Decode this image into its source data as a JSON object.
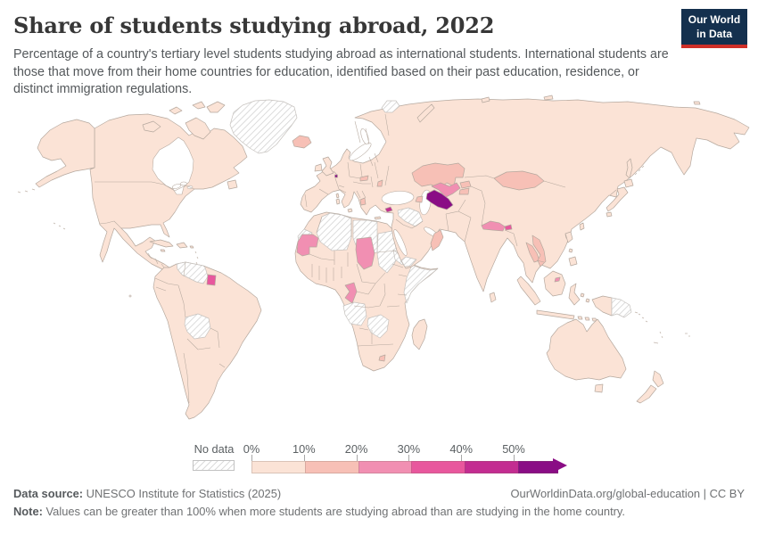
{
  "header": {
    "title": "Share of students studying abroad, 2022",
    "subtitle": "Percentage of a country's tertiary level students studying abroad as international students. International students are those that move from their home countries for education, identified based on their past education, residence, or distinct immigration regulations."
  },
  "logo": {
    "line1": "Our World",
    "line2": "in Data",
    "bg_color": "#14304e",
    "accent_color": "#cf2f28"
  },
  "legend": {
    "no_data_label": "No data",
    "ticks": [
      "0%",
      "10%",
      "20%",
      "30%",
      "40%",
      "50%"
    ]
  },
  "footer": {
    "source_label": "Data source:",
    "source_text": " UNESCO Institute for Statistics (2025)",
    "link_text": "OurWorldinData.org/global-education | CC BY",
    "note_label": "Note:",
    "note_text": " Values can be greater than 100% when more students are studying abroad than are studying in the home country."
  },
  "chart_data": {
    "type": "choropleth_map",
    "title": "Share of students studying abroad, 2022",
    "year": 2022,
    "unit": "%",
    "projection": "world-robinson",
    "legend": {
      "no_data": {
        "label": "No data",
        "pattern": "diagonal-hatch"
      },
      "bins": [
        {
          "min": 0,
          "max": 10,
          "label": "0%",
          "color": "#fbe3d6"
        },
        {
          "min": 10,
          "max": 20,
          "label": "10%",
          "color": "#f7c0b6"
        },
        {
          "min": 20,
          "max": 30,
          "label": "20%",
          "color": "#f18fb2"
        },
        {
          "min": 30,
          "max": 40,
          "label": "30%",
          "color": "#e8579d"
        },
        {
          "min": 40,
          "max": 50,
          "label": "40%",
          "color": "#c32d91"
        },
        {
          "min": 50,
          "max": null,
          "label": "50%",
          "color": "#8a0d85",
          "open_ended": true
        }
      ]
    },
    "countries_by_bin": {
      "50%+": [
        "Turkmenistan",
        "Luxembourg"
      ],
      "40-50%": [
        "Cyprus"
      ],
      "30-40%": [
        "Suriname",
        "Bhutan"
      ],
      "20-30%": [
        "Uzbekistan",
        "Mauritania",
        "Chad",
        "Republic of the Congo",
        "Nepal",
        "Brunei"
      ],
      "10-20%": [
        "Iceland",
        "Kazakhstan",
        "Mongolia",
        "Slovakia",
        "Moldova",
        "Albania",
        "North Macedonia",
        "Azerbaijan",
        "Oman",
        "Laos",
        "Vietnam",
        "Sri Lanka",
        "Lesotho",
        "Kyrgyzstan",
        "Tajikistan"
      ],
      "0-10%": [
        "Most remaining countries of the Americas, Europe, Africa, East Asia and Oceania"
      ],
      "no_data": [
        "Greenland",
        "Svalbard",
        "Venezuela",
        "Guyana",
        "Bolivia",
        "Western Sahara",
        "Algeria",
        "Libya",
        "Sudan",
        "South Sudan",
        "Eritrea",
        "Somalia",
        "Yemen",
        "Syria",
        "Iraq",
        "Angola",
        "Zambia",
        "Zimbabwe",
        "Papua New Guinea"
      ]
    },
    "map_stroke": "#b5a89e"
  }
}
